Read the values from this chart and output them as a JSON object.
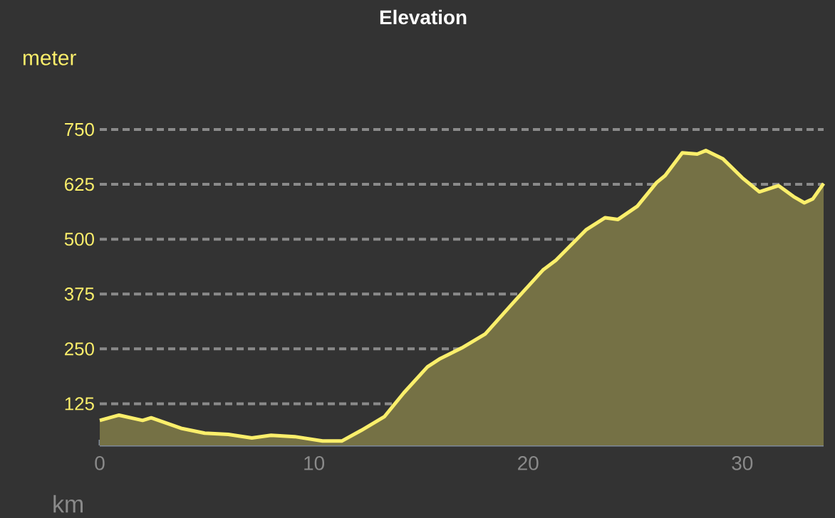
{
  "chart_data": {
    "type": "area",
    "title": "Elevation",
    "xlabel": "km",
    "ylabel": "meter",
    "x": [
      0,
      0.9,
      2,
      2.4,
      3.8,
      4.9,
      6,
      7.1,
      8,
      9.1,
      10.4,
      11.3,
      12.2,
      13.3,
      14.2,
      15.3,
      15.9,
      16.9,
      18,
      19.3,
      20.7,
      21.3,
      22.7,
      23.6,
      24.2,
      25.1,
      26,
      26.4,
      27.2,
      27.9,
      28.3,
      29.1,
      30,
      30.8,
      31.7,
      32.4,
      32.9,
      33.3,
      33.8
    ],
    "values": [
      87,
      99,
      87,
      93,
      69,
      58,
      55,
      47,
      53,
      50,
      40,
      40,
      64,
      96,
      150,
      209,
      228,
      252,
      284,
      355,
      430,
      452,
      521,
      549,
      545,
      575,
      629,
      645,
      697,
      694,
      702,
      683,
      640,
      608,
      622,
      597,
      583,
      592,
      627
    ],
    "color": "#fbef6b",
    "xlim": [
      0,
      33.8
    ],
    "ylim": [
      30,
      750
    ],
    "xticks": [
      0,
      10,
      20,
      30
    ],
    "yticks": [
      125,
      250,
      375,
      500,
      625,
      750
    ],
    "grid": "y",
    "line_style": "solid"
  }
}
